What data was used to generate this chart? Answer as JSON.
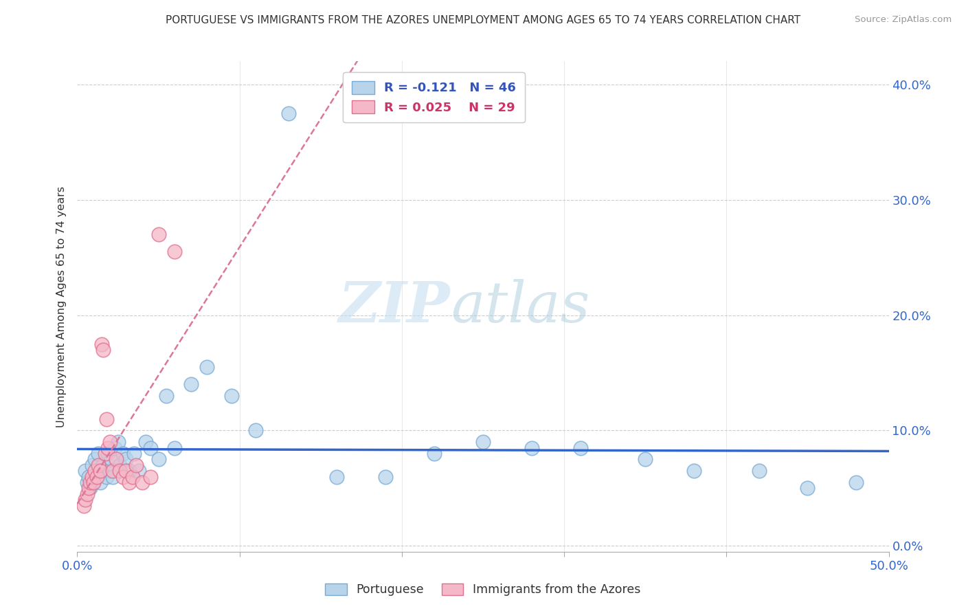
{
  "title": "PORTUGUESE VS IMMIGRANTS FROM THE AZORES UNEMPLOYMENT AMONG AGES 65 TO 74 YEARS CORRELATION CHART",
  "source": "Source: ZipAtlas.com",
  "ylabel": "Unemployment Among Ages 65 to 74 years",
  "xlim": [
    0.0,
    0.5
  ],
  "ylim": [
    -0.005,
    0.42
  ],
  "xticks": [
    0.0,
    0.1,
    0.2,
    0.3,
    0.4,
    0.5
  ],
  "yticks": [
    0.0,
    0.1,
    0.2,
    0.3,
    0.4
  ],
  "ytick_labels_right": [
    "0.0%",
    "10.0%",
    "20.0%",
    "30.0%",
    "40.0%"
  ],
  "xtick_labels": [
    "0.0%",
    "",
    "",
    "",
    "",
    "50.0%"
  ],
  "portuguese_color": "#b8d4ea",
  "azores_color": "#f5b8c8",
  "portuguese_edge": "#7aaad4",
  "azores_edge": "#e07090",
  "trend_blue": "#3366cc",
  "trend_pink": "#dd7799",
  "legend_R_blue": "-0.121",
  "legend_N_blue": "46",
  "legend_R_pink": "0.025",
  "legend_N_pink": "29",
  "watermark_zip": "ZIP",
  "watermark_atlas": "atlas",
  "portuguese_x": [
    0.005,
    0.006,
    0.007,
    0.008,
    0.009,
    0.01,
    0.011,
    0.012,
    0.013,
    0.014,
    0.015,
    0.016,
    0.018,
    0.019,
    0.02,
    0.021,
    0.022,
    0.023,
    0.025,
    0.026,
    0.028,
    0.03,
    0.032,
    0.035,
    0.038,
    0.042,
    0.045,
    0.05,
    0.055,
    0.06,
    0.07,
    0.08,
    0.095,
    0.11,
    0.13,
    0.16,
    0.19,
    0.22,
    0.25,
    0.28,
    0.31,
    0.35,
    0.38,
    0.42,
    0.45,
    0.48
  ],
  "portuguese_y": [
    0.065,
    0.055,
    0.06,
    0.05,
    0.07,
    0.055,
    0.075,
    0.06,
    0.08,
    0.055,
    0.065,
    0.07,
    0.06,
    0.08,
    0.065,
    0.075,
    0.06,
    0.085,
    0.09,
    0.07,
    0.08,
    0.075,
    0.065,
    0.08,
    0.065,
    0.09,
    0.085,
    0.075,
    0.13,
    0.085,
    0.14,
    0.155,
    0.13,
    0.1,
    0.375,
    0.06,
    0.06,
    0.08,
    0.09,
    0.085,
    0.085,
    0.075,
    0.065,
    0.065,
    0.05,
    0.055
  ],
  "azores_x": [
    0.004,
    0.005,
    0.006,
    0.007,
    0.008,
    0.009,
    0.01,
    0.011,
    0.012,
    0.013,
    0.014,
    0.015,
    0.016,
    0.017,
    0.018,
    0.019,
    0.02,
    0.022,
    0.024,
    0.026,
    0.028,
    0.03,
    0.032,
    0.034,
    0.036,
    0.04,
    0.045,
    0.05,
    0.06
  ],
  "azores_y": [
    0.035,
    0.04,
    0.045,
    0.05,
    0.055,
    0.06,
    0.055,
    0.065,
    0.06,
    0.07,
    0.065,
    0.175,
    0.17,
    0.08,
    0.11,
    0.085,
    0.09,
    0.065,
    0.075,
    0.065,
    0.06,
    0.065,
    0.055,
    0.06,
    0.07,
    0.055,
    0.06,
    0.27,
    0.255
  ]
}
